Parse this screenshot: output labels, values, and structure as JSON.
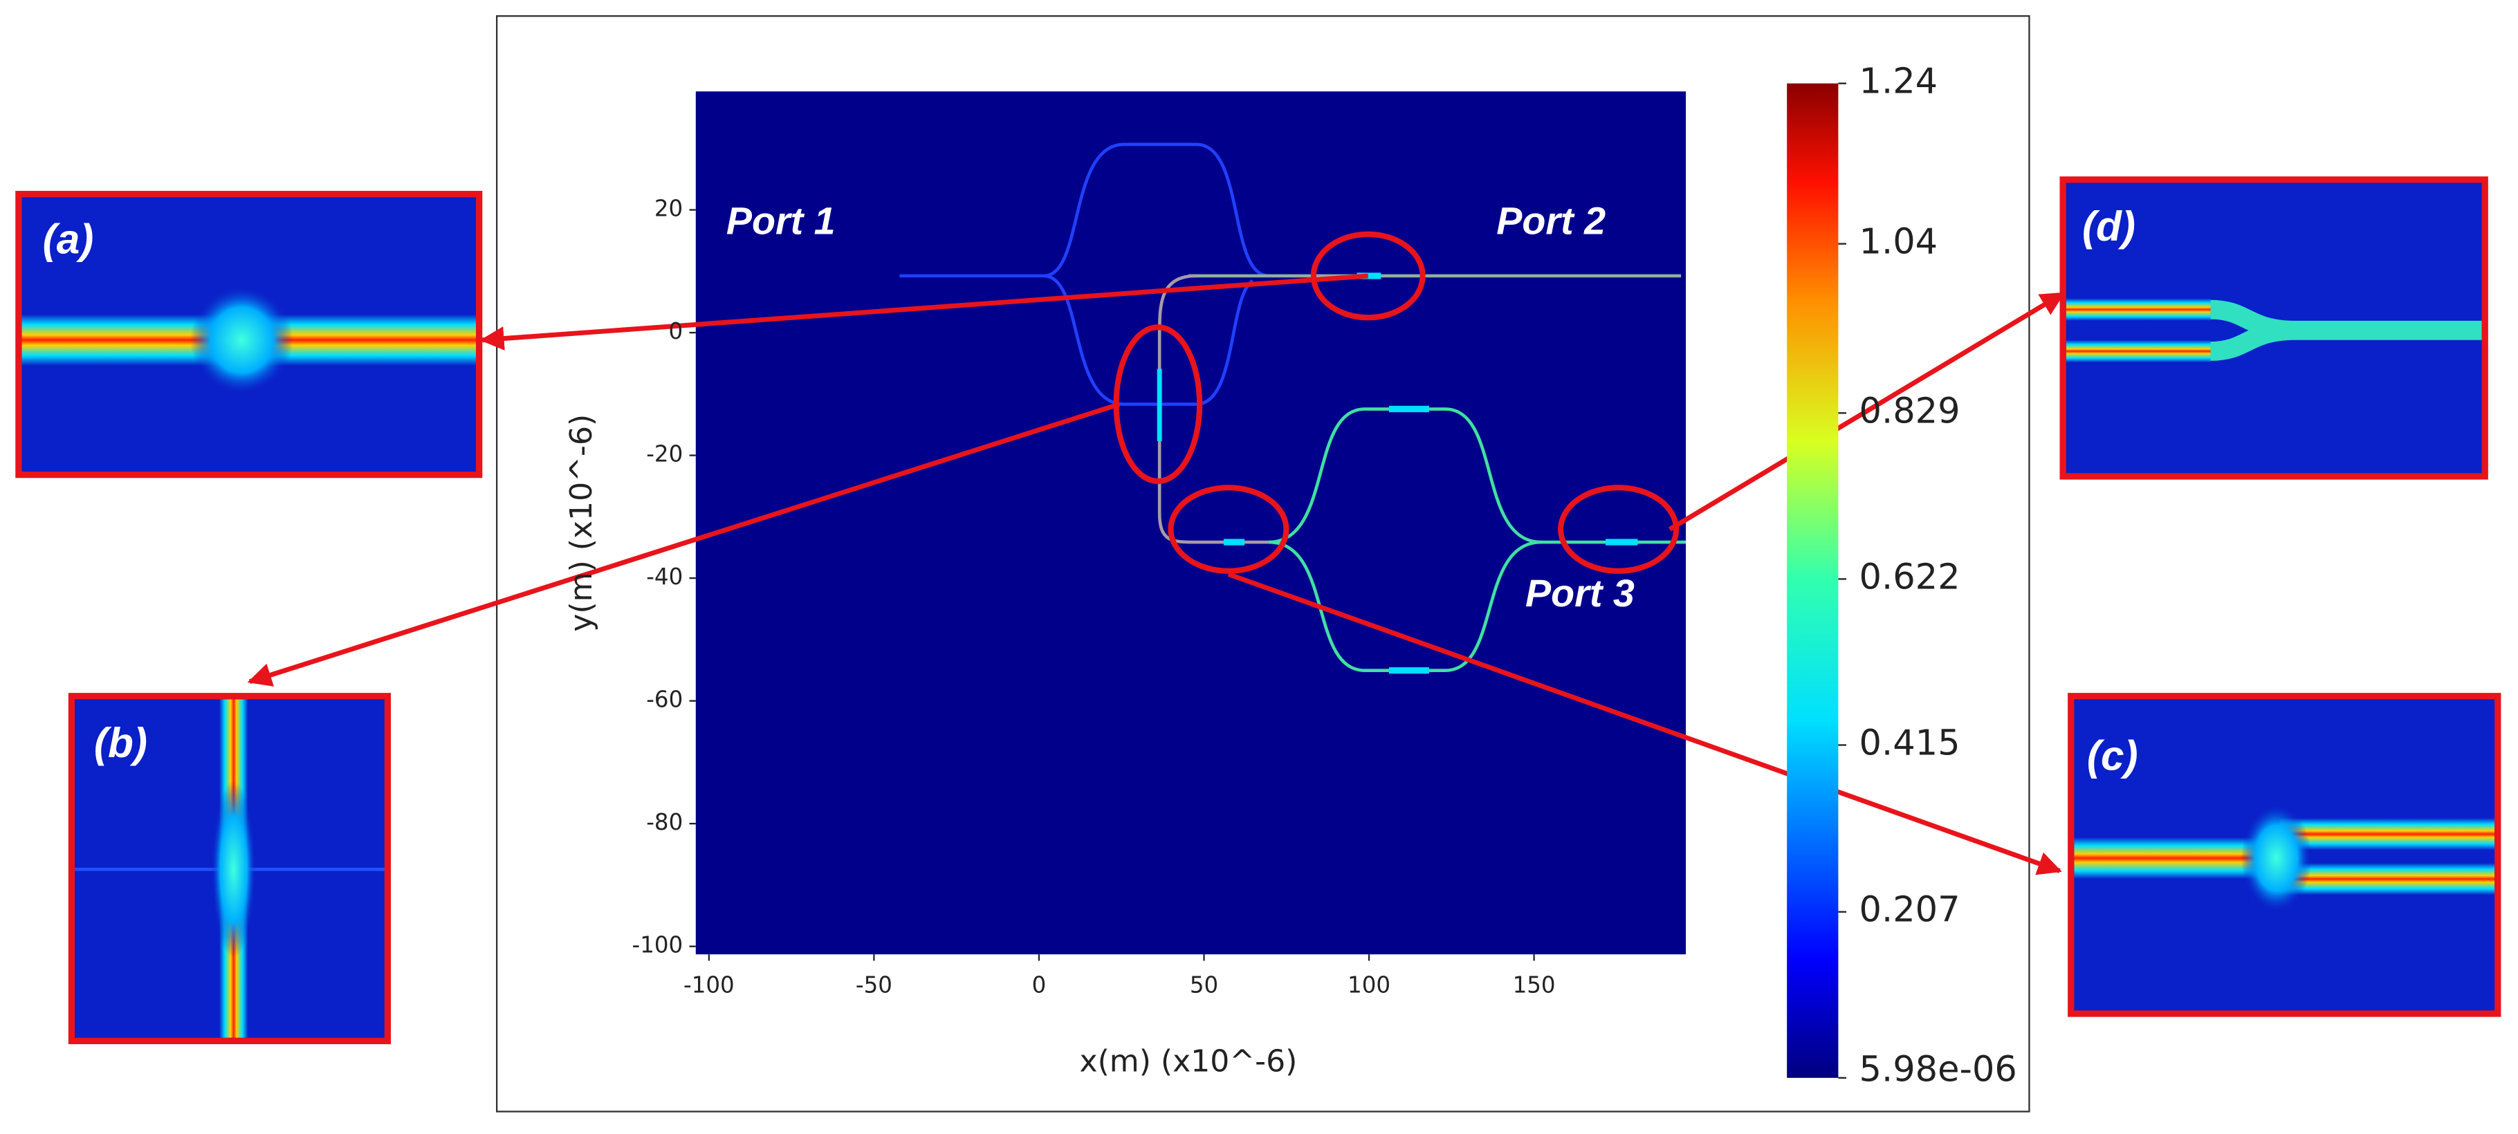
{
  "chart_data": {
    "type": "field",
    "xlabel": "x(m) (x10^-6)",
    "ylabel": "y(m) (x10^-6)",
    "xlim": [
      -104,
      196
    ],
    "xticks": [
      -100,
      -50,
      0,
      50,
      100,
      150
    ],
    "ylim": [
      -101.3,
      39.3
    ],
    "yticks": [
      20,
      0,
      -20,
      -40,
      -60,
      -80,
      -100
    ],
    "colorbar": {
      "lim": [
        5.98e-06,
        1.24
      ],
      "ticks": [
        {
          "value": 5.98e-06,
          "label": "5.98e-06"
        },
        0.207,
        0.415,
        0.622,
        0.829,
        1.04,
        1.24
      ]
    },
    "ports": [
      "Port 1",
      "Port 2",
      "Port 3"
    ],
    "panels": [
      "(a)",
      "(b)",
      "(c)",
      "(d)"
    ]
  }
}
